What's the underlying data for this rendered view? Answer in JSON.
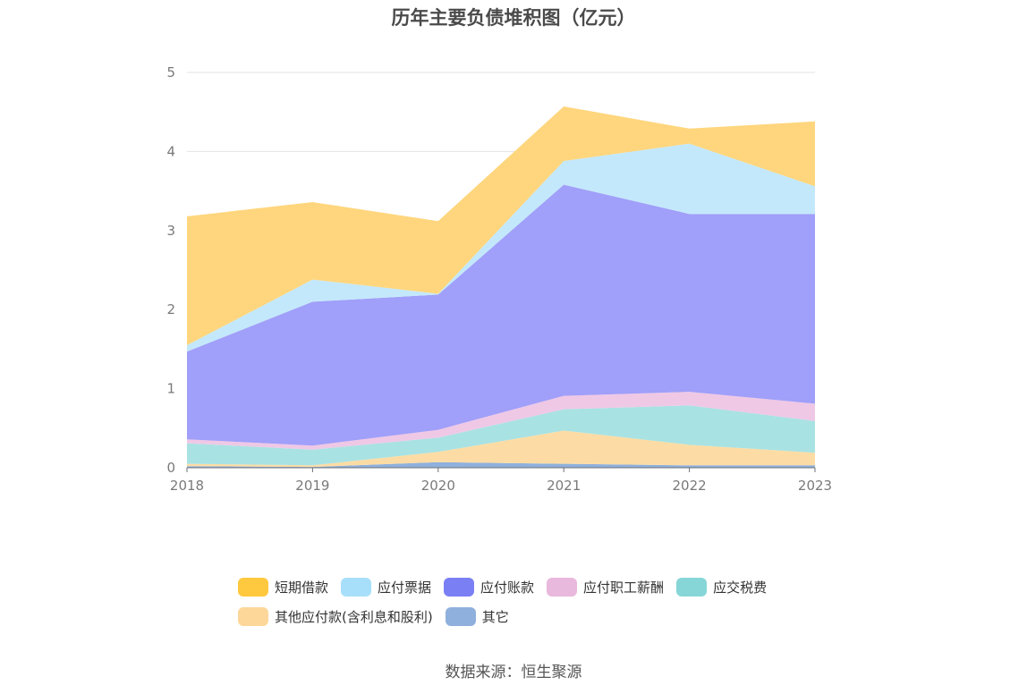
{
  "chart_data": {
    "type": "area",
    "title": "历年主要负债堆积图（亿元）",
    "x": [
      "2018",
      "2019",
      "2020",
      "2021",
      "2022",
      "2023"
    ],
    "ylim": [
      0,
      5
    ],
    "yticks": [
      "0",
      "1",
      "2",
      "3",
      "4",
      "5"
    ],
    "grid": true,
    "stacked": true,
    "legend_position": "bottom",
    "series": [
      {
        "name": "其它",
        "color": "#8fb0dc",
        "values": [
          0.02,
          0.01,
          0.07,
          0.05,
          0.03,
          0.03
        ]
      },
      {
        "name": "其他应付款(含利息和股利)",
        "color": "#fcdca4",
        "values": [
          0.03,
          0.02,
          0.13,
          0.42,
          0.26,
          0.16
        ]
      },
      {
        "name": "应交税费",
        "color": "#a9e2e3",
        "values": [
          0.26,
          0.2,
          0.18,
          0.27,
          0.5,
          0.4
        ]
      },
      {
        "name": "应付职工薪酬",
        "color": "#efc8e6",
        "values": [
          0.05,
          0.05,
          0.1,
          0.17,
          0.17,
          0.22
        ]
      },
      {
        "name": "应付账款",
        "color": "#a09ff9",
        "values": [
          1.11,
          1.82,
          1.71,
          2.67,
          2.25,
          2.4
        ]
      },
      {
        "name": "应付票据",
        "color": "#c3e8fb",
        "values": [
          0.08,
          0.28,
          0.01,
          0.3,
          0.89,
          0.35
        ]
      },
      {
        "name": "短期借款",
        "color": "#ffd67d",
        "values": [
          1.63,
          0.98,
          0.92,
          0.69,
          0.19,
          0.82
        ]
      }
    ],
    "legend": [
      {
        "name": "短期借款",
        "color": "#ffc93f"
      },
      {
        "name": "应付票据",
        "color": "#a7dffa"
      },
      {
        "name": "应付账款",
        "color": "#7b7ff4"
      },
      {
        "name": "应付职工薪酬",
        "color": "#e9b8dd"
      },
      {
        "name": "应交税费",
        "color": "#86d6d7"
      },
      {
        "name": "其他应付款(含利息和股利)",
        "color": "#fdd79a"
      },
      {
        "name": "其它",
        "color": "#8fb0dc"
      }
    ]
  },
  "source": "数据来源：恒生聚源"
}
